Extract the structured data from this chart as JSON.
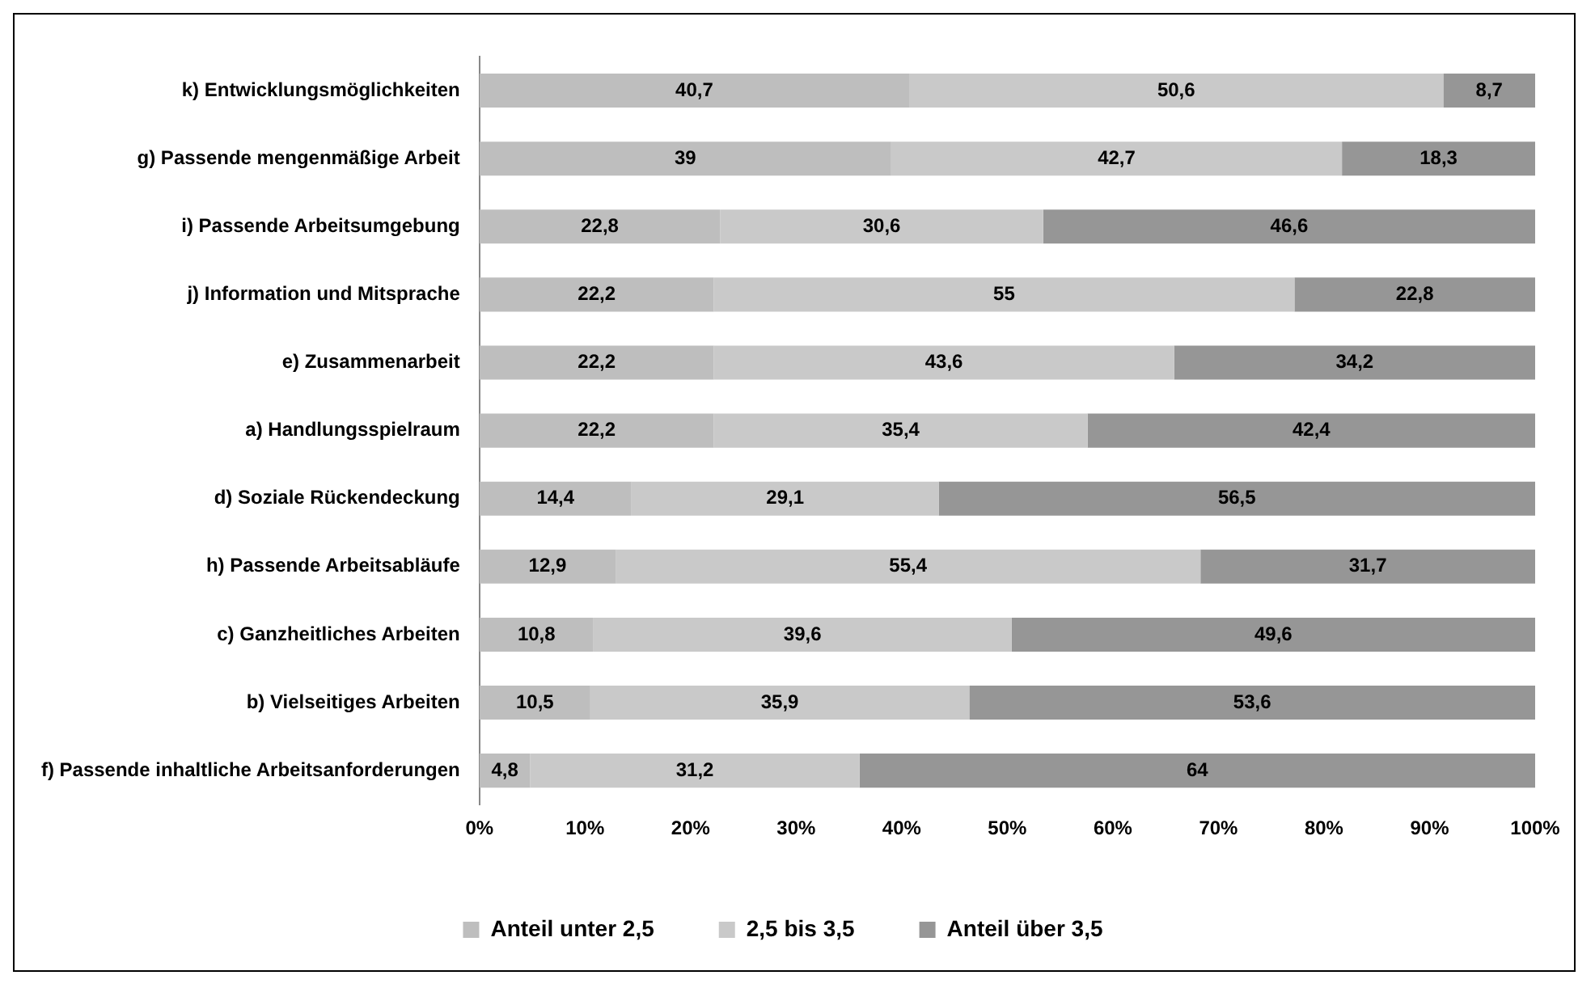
{
  "chart_data": {
    "type": "bar",
    "orientation": "horizontal",
    "stacked": true,
    "categories": [
      "k) Entwicklungsmöglichkeiten",
      "g) Passende mengenmäßige Arbeit",
      "i) Passende Arbeitsumgebung",
      "j) Information und Mitsprache",
      "e) Zusammenarbeit",
      "a) Handlungsspielraum",
      "d) Soziale Rückendeckung",
      "h) Passende Arbeitsabläufe",
      "c) Ganzheitliches Arbeiten",
      "b) Vielseitiges Arbeiten",
      "f) Passende inhaltliche Arbeitsanforderungen"
    ],
    "series": [
      {
        "name": "Anteil unter 2,5",
        "color": "#bebebe",
        "values": [
          40.7,
          39,
          22.8,
          22.2,
          22.2,
          22.2,
          14.4,
          12.9,
          10.8,
          10.5,
          4.8
        ],
        "value_labels": [
          "40,7",
          "39",
          "22,8",
          "22,2",
          "22,2",
          "22,2",
          "14,4",
          "12,9",
          "10,8",
          "10,5",
          "4,8"
        ]
      },
      {
        "name": "2,5 bis 3,5",
        "color": "#c9c9c9",
        "values": [
          50.6,
          42.7,
          30.6,
          55,
          43.6,
          35.4,
          29.1,
          55.4,
          39.6,
          35.9,
          31.2
        ],
        "value_labels": [
          "50,6",
          "42,7",
          "30,6",
          "55",
          "43,6",
          "35,4",
          "29,1",
          "55,4",
          "39,6",
          "35,9",
          "31,2"
        ]
      },
      {
        "name": "Anteil über 3,5",
        "color": "#969696",
        "values": [
          8.7,
          18.3,
          46.6,
          22.8,
          34.2,
          42.4,
          56.5,
          31.7,
          49.6,
          53.6,
          64
        ],
        "value_labels": [
          "8,7",
          "18,3",
          "46,6",
          "22,8",
          "34,2",
          "42,4",
          "56,5",
          "31,7",
          "49,6",
          "53,6",
          "64"
        ]
      }
    ],
    "xlim": [
      0,
      100
    ],
    "xticks": [
      {
        "value": 0,
        "label": "0%"
      },
      {
        "value": 10,
        "label": "10%"
      },
      {
        "value": 20,
        "label": "20%"
      },
      {
        "value": 30,
        "label": "30%"
      },
      {
        "value": 40,
        "label": "40%"
      },
      {
        "value": 50,
        "label": "50%"
      },
      {
        "value": 60,
        "label": "60%"
      },
      {
        "value": 70,
        "label": "70%"
      },
      {
        "value": 80,
        "label": "80%"
      },
      {
        "value": 90,
        "label": "90%"
      },
      {
        "value": 100,
        "label": "100%"
      }
    ],
    "legend": "bottom"
  }
}
